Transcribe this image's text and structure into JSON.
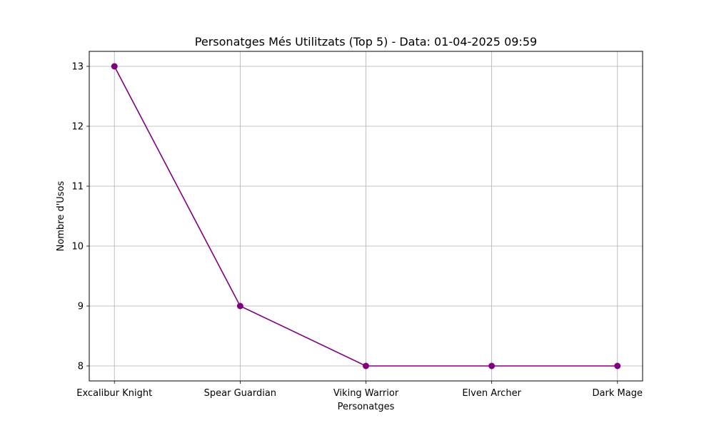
{
  "chart_data": {
    "type": "line",
    "title": "Personatges Més Utilitzats (Top 5) - Data: 01-04-2025 09:59",
    "xlabel": "Personatges",
    "ylabel": "Nombre d'Usos",
    "categories": [
      "Excalibur Knight",
      "Spear Guardian",
      "Viking Warrior",
      "Elven Archer",
      "Dark Mage"
    ],
    "series": [
      {
        "values": [
          13,
          9,
          8,
          8,
          8
        ],
        "color": "#800080"
      }
    ],
    "ylim": [
      7.75,
      13.25
    ],
    "yticks": [
      8,
      9,
      10,
      11,
      12,
      13
    ],
    "ytick_labels": [
      "8",
      "9",
      "10",
      "11",
      "12",
      "13"
    ],
    "grid": true,
    "legend": "none"
  }
}
